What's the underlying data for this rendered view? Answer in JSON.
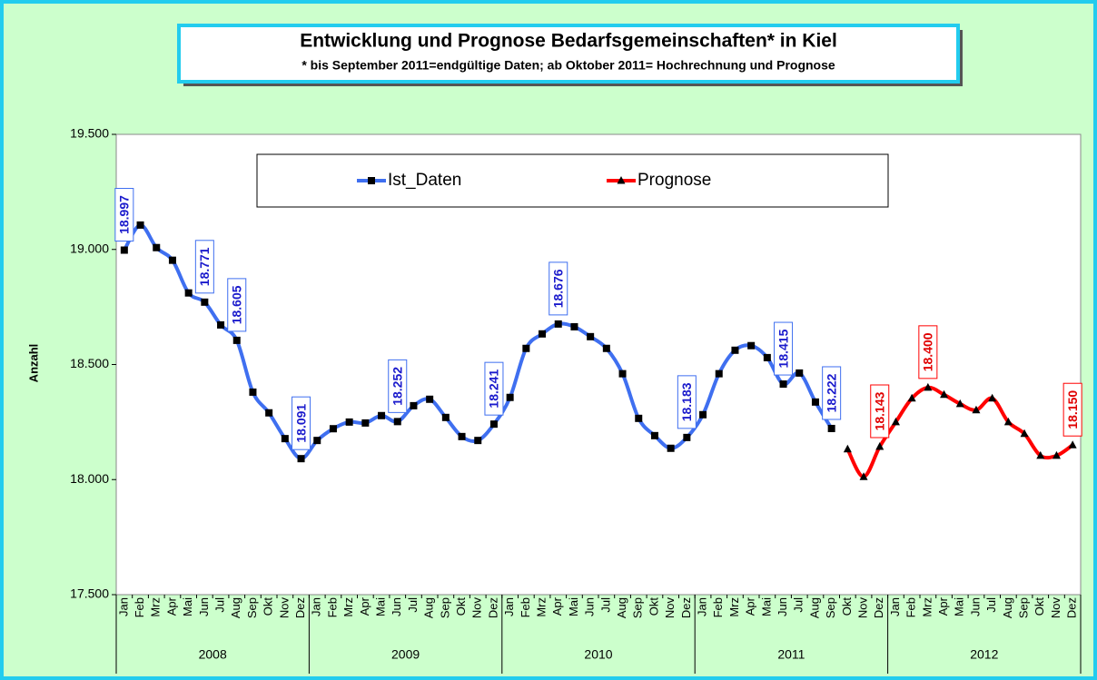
{
  "chart_data": {
    "type": "line",
    "title": "Entwicklung und Prognose Bedarfsgemeinschaften* in Kiel",
    "subtitle": "* bis September 2011=endgültige Daten; ab Oktober 2011= Hochrechnung und Prognose",
    "y_label": "Anzahl",
    "categories": [
      "Jan",
      "Feb",
      "Mrz",
      "Apr",
      "Mai",
      "Jun",
      "Jul",
      "Aug",
      "Sep",
      "Okt",
      "Nov",
      "Dez",
      "Jan",
      "Feb",
      "Mrz",
      "Apr",
      "Mai",
      "Jun",
      "Jul",
      "Aug",
      "Sep",
      "Okt",
      "Nov",
      "Dez",
      "Jan",
      "Feb",
      "Mrz",
      "Apr",
      "Mai",
      "Jun",
      "Jul",
      "Aug",
      "Sep",
      "Okt",
      "Nov",
      "Dez",
      "Jan",
      "Feb",
      "Mrz",
      "Apr",
      "Mai",
      "Jun",
      "Jul",
      "Aug",
      "Sep",
      "Okt",
      "Nov",
      "Dez",
      "Jan",
      "Feb",
      "Mrz",
      "Apr",
      "Mai",
      "Jun",
      "Jul",
      "Aug",
      "Sep",
      "Okt",
      "Nov",
      "Dez"
    ],
    "year_groups": [
      "2008",
      "2009",
      "2010",
      "2011",
      "2012"
    ],
    "series": [
      {
        "name": "Ist_Daten",
        "color": "#3f6ff0",
        "marker": "square",
        "values": [
          18997,
          19106,
          19008,
          18953,
          18811,
          18771,
          18672,
          18605,
          18380,
          18290,
          18178,
          18091,
          18170,
          18221,
          18250,
          18246,
          18278,
          18252,
          18321,
          18349,
          18270,
          18187,
          18170,
          18241,
          18357,
          18570,
          18633,
          18676,
          18664,
          18621,
          18570,
          18460,
          18266,
          18191,
          18136,
          18183,
          18282,
          18460,
          18562,
          18582,
          18530,
          18415,
          18463,
          18337,
          18222,
          null,
          null,
          null,
          null,
          null,
          null,
          null,
          null,
          null,
          null,
          null,
          null,
          null,
          null,
          null
        ],
        "value_labels": [
          "18.997",
          null,
          null,
          null,
          null,
          "18.771",
          null,
          "18.605",
          null,
          null,
          null,
          "18.091",
          null,
          null,
          null,
          null,
          null,
          "18.252",
          null,
          null,
          null,
          null,
          null,
          "18.241",
          null,
          null,
          null,
          "18.676",
          null,
          null,
          null,
          null,
          null,
          null,
          null,
          "18.183",
          null,
          null,
          null,
          null,
          null,
          "18.415",
          null,
          null,
          "18.222",
          null,
          null,
          null,
          null,
          null,
          null,
          null,
          null,
          null,
          null,
          null,
          null,
          null,
          null,
          null
        ]
      },
      {
        "name": "Prognose",
        "color": "#ff0000",
        "marker": "triangle",
        "values": [
          null,
          null,
          null,
          null,
          null,
          null,
          null,
          null,
          null,
          null,
          null,
          null,
          null,
          null,
          null,
          null,
          null,
          null,
          null,
          null,
          null,
          null,
          null,
          null,
          null,
          null,
          null,
          null,
          null,
          null,
          null,
          null,
          null,
          null,
          null,
          null,
          null,
          null,
          null,
          null,
          null,
          null,
          null,
          null,
          null,
          18132,
          18012,
          18143,
          18250,
          18353,
          18400,
          18369,
          18329,
          18302,
          18353,
          18250,
          18199,
          18104,
          18104,
          18150
        ],
        "value_labels": [
          null,
          null,
          null,
          null,
          null,
          null,
          null,
          null,
          null,
          null,
          null,
          null,
          null,
          null,
          null,
          null,
          null,
          null,
          null,
          null,
          null,
          null,
          null,
          null,
          null,
          null,
          null,
          null,
          null,
          null,
          null,
          null,
          null,
          null,
          null,
          null,
          null,
          null,
          null,
          null,
          null,
          null,
          null,
          null,
          null,
          null,
          null,
          "18.143",
          null,
          null,
          "18.400",
          null,
          null,
          null,
          null,
          null,
          null,
          null,
          null,
          "18.150"
        ]
      }
    ],
    "ylim": [
      17500,
      19500
    ],
    "yticks": [
      {
        "value": 17500,
        "label": "17.500"
      },
      {
        "value": 18000,
        "label": "18.000"
      },
      {
        "value": 18500,
        "label": "18.500"
      },
      {
        "value": 19000,
        "label": "19.000"
      },
      {
        "value": 19500,
        "label": "19.500"
      }
    ],
    "legend": "top"
  }
}
